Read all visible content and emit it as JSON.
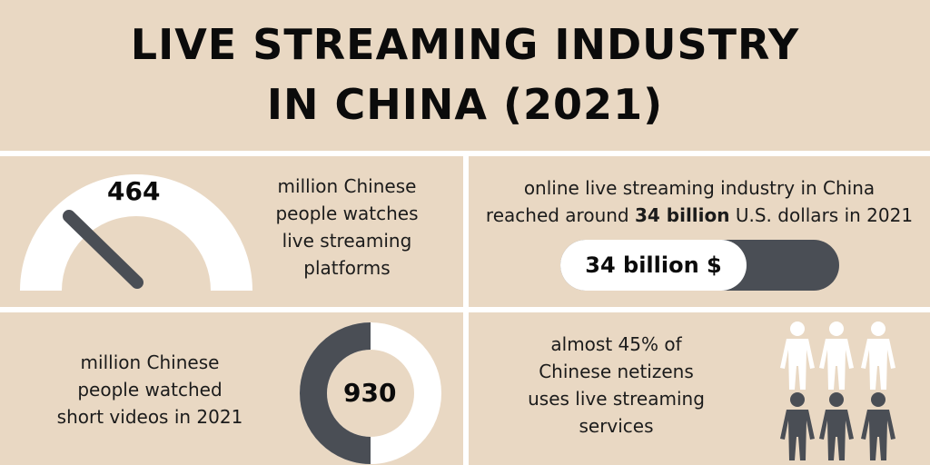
{
  "title": {
    "line1": "LIVE STREAMING INDUSTRY",
    "line2": "IN CHINA (2021)"
  },
  "gauge": {
    "value": "464",
    "text_lines": [
      "million Chinese",
      "people watches",
      "live streaming",
      "platforms"
    ]
  },
  "revenue": {
    "line1": "online live streaming industry in China",
    "line2_before": "reached around ",
    "line2_bold": "34 billion",
    "line2_after": " U.S. dollars in 2021",
    "bar_label": "34 billion $"
  },
  "donut": {
    "value": "930",
    "text_lines": [
      "million Chinese",
      "people watched",
      "short videos in 2021"
    ]
  },
  "people": {
    "text_lines": [
      "almost 45% of",
      "Chinese netizens",
      "uses live streaming",
      "services"
    ],
    "icon_count": 6,
    "highlighted": 3
  },
  "colors": {
    "background": "#e9d8c3",
    "dark": "#4a4e55",
    "light": "#ffffff"
  }
}
